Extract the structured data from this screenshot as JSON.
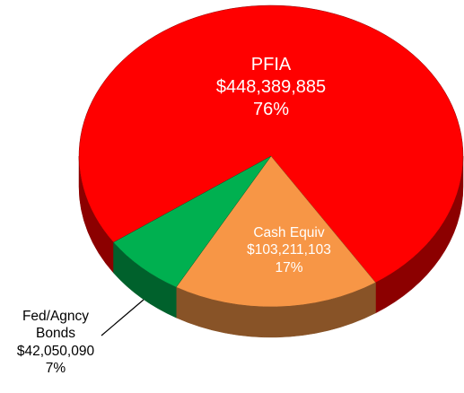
{
  "chart_data": {
    "type": "pie",
    "categories": [
      "PFIA",
      "Cash Equiv",
      "Fed/Agncy Bonds"
    ],
    "values": [
      448389885,
      103211103,
      42050090
    ],
    "value_labels": [
      "$448,389,885",
      "$103,211,103",
      "$42,050,090"
    ],
    "percents": [
      76,
      17,
      7
    ],
    "percent_labels": [
      "76%",
      "17%",
      "7%"
    ],
    "colors": [
      "#ff0000",
      "#f79646",
      "#00b050"
    ]
  }
}
